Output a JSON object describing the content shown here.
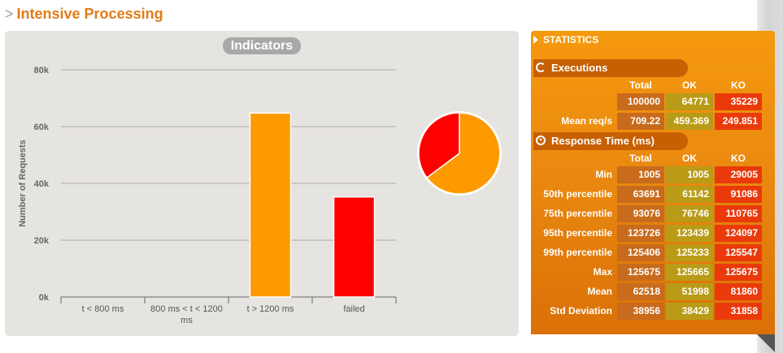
{
  "page": {
    "title": "Intensive Processing",
    "prefix": ">"
  },
  "indicators": {
    "title": "Indicators",
    "chart_data": {
      "type": "bar",
      "ylabel": "Number of Requests",
      "ylim": [
        0,
        80000
      ],
      "y_ticks": [
        "0k",
        "20k",
        "40k",
        "60k",
        "80k"
      ],
      "categories": [
        "t < 800 ms",
        "800 ms < t < 1200 ms",
        "t > 1200 ms",
        "failed"
      ],
      "values": [
        0,
        0,
        64771,
        35229
      ],
      "colors": [
        "#4caf50",
        "#ffdd00",
        "#ff9900",
        "#ff0000"
      ],
      "grid": true
    },
    "pie_data": {
      "type": "pie",
      "labels": [
        "t > 1200 ms",
        "failed"
      ],
      "values": [
        64771,
        35229
      ],
      "colors": [
        "#ff9900",
        "#ff0000"
      ]
    }
  },
  "statistics": {
    "title": "STATISTICS",
    "executions": {
      "title": "Executions",
      "headers": [
        "Total",
        "OK",
        "KO"
      ],
      "rows": [
        {
          "label": "",
          "total": "100000",
          "ok": "64771",
          "ko": "35229"
        },
        {
          "label": "Mean req/s",
          "total": "709.22",
          "ok": "459.369",
          "ko": "249.851"
        }
      ]
    },
    "response_time": {
      "title": "Response Time (ms)",
      "headers": [
        "Total",
        "OK",
        "KO"
      ],
      "rows": [
        {
          "label": "Min",
          "total": "1005",
          "ok": "1005",
          "ko": "29005"
        },
        {
          "label": "50th percentile",
          "total": "63691",
          "ok": "61142",
          "ko": "91086"
        },
        {
          "label": "75th percentile",
          "total": "93076",
          "ok": "76746",
          "ko": "110765"
        },
        {
          "label": "95th percentile",
          "total": "123726",
          "ok": "123439",
          "ko": "124097"
        },
        {
          "label": "99th percentile",
          "total": "125406",
          "ok": "125233",
          "ko": "125547"
        },
        {
          "label": "Max",
          "total": "125675",
          "ok": "125665",
          "ko": "125675"
        },
        {
          "label": "Mean",
          "total": "62518",
          "ok": "51998",
          "ko": "81860"
        },
        {
          "label": "Std Deviation",
          "total": "38956",
          "ok": "38429",
          "ko": "31858"
        }
      ]
    }
  }
}
